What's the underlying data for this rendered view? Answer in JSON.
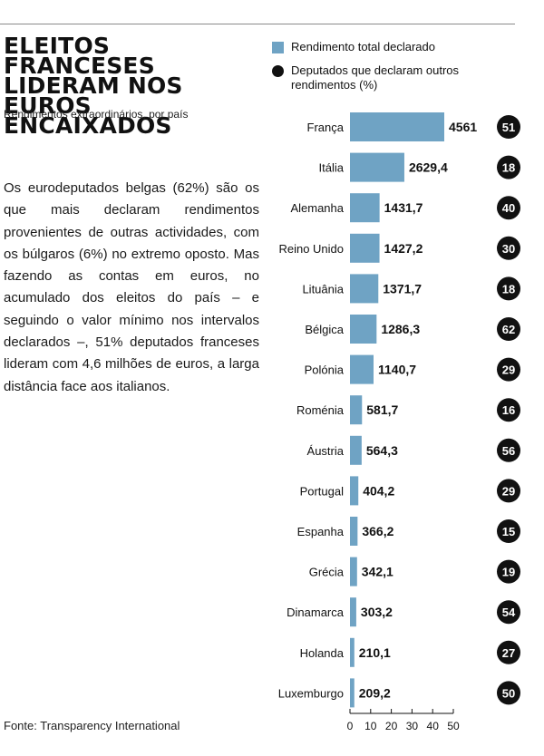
{
  "header": {
    "title": "ELEITOS FRANCESES LIDERAM NOS EUROS ENCAIXADOS",
    "subtitle": "Rendimentos extraordinários, por país"
  },
  "body_text": "Os eurodeputados belgas (62%) são os que mais declaram rendimentos provenientes de outras actividades, com os búlgaros (6%) no extremo oposto. Mas fazendo as contas em euros, no acumulado dos eleitos do país – e seguindo o valor mínimo nos intervalos declarados –, 51% deputados franceses lideram com 4,6 milhões de euros, a larga distância face aos italianos.",
  "source": "Fonte: Transparency International",
  "legend": {
    "bars_label": "Rendimento total declarado",
    "dots_label": "Deputados que declaram outros rendimentos (%)"
  },
  "colors": {
    "bar": "#6fa3c4",
    "dot": "#111111",
    "text": "#111111"
  },
  "chart_data": {
    "type": "bar",
    "orientation": "horizontal",
    "categories": [
      "França",
      "Itália",
      "Alemanha",
      "Reino Unido",
      "Lituânia",
      "Bélgica",
      "Polónia",
      "Roménia",
      "Áustria",
      "Portugal",
      "Espanha",
      "Grécia",
      "Dinamarca",
      "Holanda",
      "Luxemburgo"
    ],
    "series": [
      {
        "name": "Rendimento total declarado",
        "values": [
          4561,
          2629.4,
          1431.7,
          1427.2,
          1371.7,
          1286.3,
          1140.7,
          581.7,
          564.3,
          404.2,
          366.2,
          342.1,
          303.2,
          210.1,
          209.2
        ],
        "labels": [
          "4561",
          "2629,4",
          "1431,7",
          "1427,2",
          "1371,7",
          "1286,3",
          "1140,7",
          "581,7",
          "564,3",
          "404,2",
          "366,2",
          "342,1",
          "303,2",
          "210,1",
          "209,2"
        ]
      },
      {
        "name": "Deputados que declaram outros rendimentos (%)",
        "values": [
          51,
          18,
          40,
          30,
          18,
          62,
          29,
          16,
          56,
          29,
          15,
          19,
          54,
          27,
          50
        ]
      }
    ],
    "x_ticks": [
      "0",
      "10",
      "20",
      "30",
      "40",
      "50"
    ],
    "xlim": [
      0,
      5000
    ],
    "grid": false,
    "legend_position": "top"
  }
}
